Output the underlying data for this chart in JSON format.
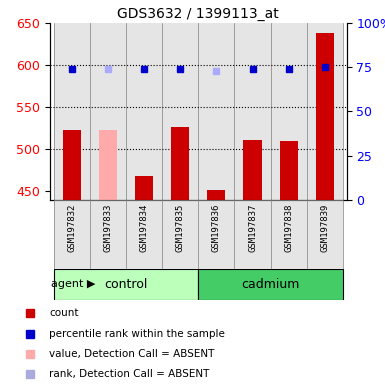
{
  "title": "GDS3632 / 1399113_at",
  "samples": [
    "GSM197832",
    "GSM197833",
    "GSM197834",
    "GSM197835",
    "GSM197836",
    "GSM197837",
    "GSM197838",
    "GSM197839"
  ],
  "bar_values": [
    523,
    523,
    468,
    527,
    452,
    511,
    510,
    638
  ],
  "bar_colors": [
    "#cc0000",
    "#ffaaaa",
    "#cc0000",
    "#cc0000",
    "#cc0000",
    "#cc0000",
    "#cc0000",
    "#cc0000"
  ],
  "rank_values": [
    74,
    74,
    74,
    74,
    73,
    74,
    74,
    75
  ],
  "rank_colors": [
    "#0000cc",
    "#aaaaff",
    "#0000cc",
    "#0000cc",
    "#aaaaff",
    "#0000cc",
    "#0000cc",
    "#0000cc"
  ],
  "ylim_left": [
    440,
    650
  ],
  "ylim_right": [
    0,
    100
  ],
  "yticks_left": [
    450,
    500,
    550,
    600,
    650
  ],
  "yticks_right": [
    0,
    25,
    50,
    75,
    100
  ],
  "ytick_labels_right": [
    "0",
    "25",
    "50",
    "75",
    "100%"
  ],
  "gridlines": [
    600,
    550,
    500
  ],
  "groups": [
    {
      "label": "control",
      "start": 0,
      "end": 4,
      "color": "#bbffbb"
    },
    {
      "label": "cadmium",
      "start": 4,
      "end": 8,
      "color": "#44cc66"
    }
  ],
  "agent_label": "agent",
  "legend_items": [
    {
      "label": "count",
      "color": "#cc0000"
    },
    {
      "label": "percentile rank within the sample",
      "color": "#0000cc"
    },
    {
      "label": "value, Detection Call = ABSENT",
      "color": "#ffaaaa"
    },
    {
      "label": "rank, Detection Call = ABSENT",
      "color": "#aaaadd"
    }
  ],
  "bar_width": 0.5,
  "col_bg": "#cccccc"
}
